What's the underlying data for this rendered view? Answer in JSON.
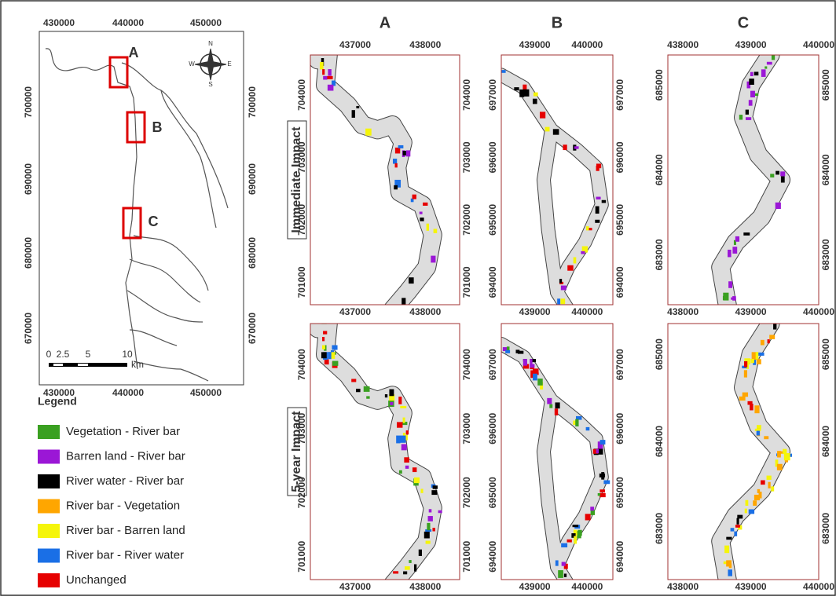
{
  "overview": {
    "x_labels": [
      "430000",
      "440000",
      "450000"
    ],
    "y_labels": [
      "700000",
      "690000",
      "680000",
      "670000"
    ],
    "scale_labels": [
      "0",
      "2.5",
      "5",
      "10"
    ],
    "scale_unit": "km",
    "inset_labels": [
      "A",
      "B",
      "C"
    ],
    "compass": [
      "N",
      "S",
      "E",
      "W"
    ]
  },
  "legend": {
    "title": "Legend",
    "items": [
      {
        "label": "Vegetation - River bar",
        "color": "#3aa021"
      },
      {
        "label": "Barren land - River bar",
        "color": "#9b17d6"
      },
      {
        "label": "River water - River bar",
        "color": "#000000"
      },
      {
        "label": "River bar - Vegetation",
        "color": "#ffa600"
      },
      {
        "label": "River bar - Barren land",
        "color": "#f5f50a"
      },
      {
        "label": "River bar - River water",
        "color": "#1a6fe6"
      },
      {
        "label": "Unchanged",
        "color": "#e60000"
      }
    ]
  },
  "columns": [
    {
      "name": "A",
      "x_labels": [
        "437000",
        "438000"
      ],
      "y_labels": [
        "704000",
        "703000",
        "702000",
        "701000"
      ]
    },
    {
      "name": "B",
      "x_labels": [
        "439000",
        "440000"
      ],
      "y_labels": [
        "697000",
        "696000",
        "695000",
        "694000"
      ]
    },
    {
      "name": "C",
      "x_labels": [
        "438000",
        "439000",
        "440000"
      ],
      "y_labels": [
        "685000",
        "684000",
        "683000"
      ]
    }
  ],
  "rows": [
    "Immediate Impact",
    "5-year Impact"
  ]
}
